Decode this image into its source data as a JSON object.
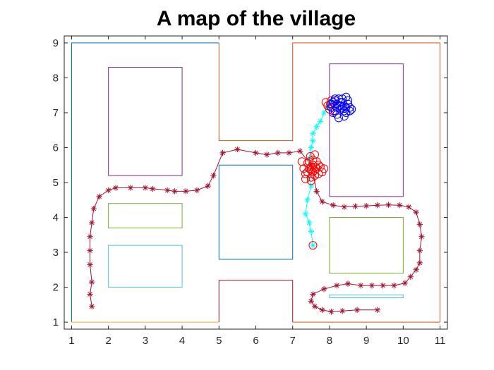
{
  "chart_data": {
    "type": "line",
    "title": "A map of the village",
    "xlabel": "",
    "ylabel": "",
    "xlim": [
      0.8,
      11.2
    ],
    "ylim": [
      0.8,
      9.2
    ],
    "xticks": [
      1,
      2,
      3,
      4,
      5,
      6,
      7,
      8,
      9,
      10,
      11
    ],
    "yticks": [
      1,
      2,
      3,
      4,
      5,
      6,
      7,
      8,
      9
    ],
    "grid": false,
    "legend": "none",
    "walls": [
      {
        "color": "#0072BD",
        "points": [
          [
            1,
            1
          ],
          [
            1,
            9
          ],
          [
            5,
            9
          ]
        ]
      },
      {
        "color": "#D95319",
        "points": [
          [
            5,
            9
          ],
          [
            5,
            6.2
          ],
          [
            7,
            6.2
          ],
          [
            7,
            9
          ],
          [
            11,
            9
          ],
          [
            11,
            1
          ]
        ]
      },
      {
        "color": "#EDB120",
        "points": [
          [
            1,
            1
          ],
          [
            5,
            1
          ]
        ]
      },
      {
        "color": "#A2142F",
        "points": [
          [
            5,
            1
          ],
          [
            5,
            2.2
          ],
          [
            7,
            2.2
          ],
          [
            7,
            1
          ]
        ]
      },
      {
        "color": "#D95319",
        "points": [
          [
            7,
            1
          ],
          [
            11,
            1
          ]
        ]
      }
    ],
    "buildings": [
      {
        "color": "#7E2F8E",
        "x0": 2,
        "y0": 5.2,
        "x1": 4,
        "y1": 8.3
      },
      {
        "color": "#77AC30",
        "x0": 2,
        "y0": 3.7,
        "x1": 4,
        "y1": 4.4
      },
      {
        "color": "#4DBEEE",
        "x0": 2,
        "y0": 2.0,
        "x1": 4,
        "y1": 3.2
      },
      {
        "color": "#0072BD",
        "x0": 5,
        "y0": 2.8,
        "x1": 7,
        "y1": 5.5
      },
      {
        "color": "#7E2F8E",
        "x0": 8,
        "y0": 4.6,
        "x1": 10,
        "y1": 8.4
      },
      {
        "color": "#77AC30",
        "x0": 8,
        "y0": 2.4,
        "x1": 10,
        "y1": 4.0
      },
      {
        "color": "#4DBEEE",
        "x0": 8,
        "y0": 1.7,
        "x1": 10,
        "y1": 1.78
      }
    ],
    "series": [
      {
        "marker": "asterisk",
        "color": "#A2142F",
        "x": [
          1.55,
          1.5,
          1.55,
          1.5,
          1.5,
          1.5,
          1.55,
          1.6,
          1.75,
          2.0,
          2.2,
          2.6,
          3.0,
          3.2,
          3.6,
          3.8,
          4.1,
          4.4,
          4.7,
          4.85,
          5.1,
          5.5,
          6.0,
          6.3,
          6.6,
          6.9,
          7.2,
          7.5,
          7.65,
          7.8,
          8.1,
          8.4,
          8.7,
          9.0,
          9.3,
          9.6,
          9.9,
          10.15,
          10.35,
          10.45,
          10.5,
          10.45,
          10.45,
          10.35,
          10.2,
          10.05,
          9.75,
          9.45,
          9.15,
          8.85,
          8.5,
          8.2,
          7.85,
          7.55,
          7.5,
          7.6,
          7.8,
          8.05,
          8.35,
          8.75,
          9.3
        ],
        "y": [
          1.45,
          1.8,
          2.15,
          2.65,
          3.05,
          3.45,
          3.85,
          4.25,
          4.6,
          4.78,
          4.85,
          4.85,
          4.85,
          4.82,
          4.78,
          4.75,
          4.75,
          4.78,
          4.9,
          5.2,
          5.85,
          5.95,
          5.85,
          5.8,
          5.85,
          5.85,
          5.9,
          5.5,
          4.75,
          4.45,
          4.35,
          4.3,
          4.32,
          4.33,
          4.35,
          4.36,
          4.35,
          4.3,
          4.15,
          3.8,
          3.45,
          3.05,
          2.7,
          2.5,
          2.3,
          2.12,
          2.05,
          2.05,
          2.05,
          2.05,
          2.1,
          2.05,
          1.95,
          1.8,
          1.6,
          1.45,
          1.35,
          1.3,
          1.32,
          1.35,
          1.35
        ]
      },
      {
        "marker": "asterisk",
        "color": "#00FFFF",
        "x": [
          7.55,
          7.5,
          7.45,
          7.35,
          7.4,
          7.5,
          7.45,
          7.4,
          7.45,
          7.5,
          7.55,
          7.55,
          7.65,
          7.75,
          7.85,
          7.95,
          8.0,
          8.05
        ],
        "y": [
          3.2,
          3.6,
          3.85,
          4.1,
          4.5,
          4.9,
          5.15,
          5.4,
          5.7,
          6.0,
          6.2,
          6.4,
          6.6,
          6.75,
          7.0,
          7.15,
          7.25,
          7.35
        ]
      },
      {
        "marker": "circle",
        "color": "#FF0000",
        "x": [
          7.55,
          7.4,
          7.5,
          7.6,
          7.7,
          7.3,
          7.35,
          7.45,
          7.55,
          7.65,
          7.75,
          7.8,
          7.5,
          7.6,
          7.45,
          7.55,
          7.4,
          7.65,
          7.7,
          7.5,
          7.6,
          7.35,
          7.85,
          7.25,
          7.55,
          7.5,
          7.62,
          7.48,
          7.9,
          7.95,
          8.0,
          8.05,
          8.1,
          8.02
        ],
        "y": [
          3.2,
          5.3,
          5.45,
          5.35,
          5.5,
          5.4,
          5.25,
          5.6,
          5.65,
          5.6,
          5.45,
          5.3,
          5.15,
          5.2,
          5.4,
          5.5,
          5.55,
          5.4,
          5.25,
          5.35,
          5.8,
          5.1,
          5.4,
          5.6,
          5.3,
          5.05,
          5.45,
          5.75,
          7.3,
          7.2,
          7.1,
          7.35,
          7.05,
          7.25
        ]
      },
      {
        "marker": "circle",
        "color": "#0000FF",
        "x": [
          8.05,
          8.1,
          8.15,
          8.2,
          8.25,
          8.3,
          8.35,
          8.4,
          8.45,
          8.5,
          8.55,
          8.2,
          8.3,
          8.45,
          8.15,
          8.25,
          8.4,
          8.35,
          8.2,
          8.5,
          8.1,
          8.3,
          8.55,
          8.4,
          8.25,
          8.6,
          8.35,
          8.15,
          8.45,
          8.05
        ],
        "y": [
          7.15,
          7.3,
          7.05,
          7.25,
          7.4,
          7.1,
          7.3,
          7.2,
          7.0,
          7.35,
          7.15,
          6.95,
          7.2,
          7.45,
          7.4,
          6.85,
          7.05,
          7.4,
          7.15,
          7.25,
          7.0,
          7.3,
          7.05,
          6.9,
          7.2,
          7.1,
          7.15,
          7.35,
          7.15,
          7.25
        ]
      }
    ]
  }
}
